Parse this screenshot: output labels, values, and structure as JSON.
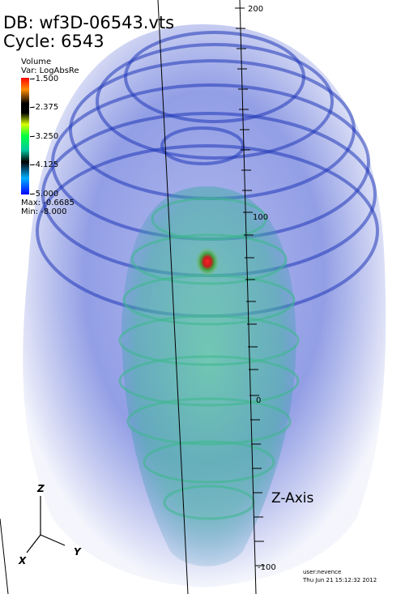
{
  "header": {
    "db_label": "DB: wf3D-06543.vts",
    "cycle_label": "Cycle: 6543"
  },
  "legend": {
    "plot_type": "Volume",
    "variable": "Var: LogAbsRe",
    "ticks": [
      "-1.500",
      "-2.375",
      "-3.250",
      "-4.125",
      "-5.000"
    ],
    "max_label": "Max: -0.6685",
    "min_label": "Min: -8.000"
  },
  "z_axis": {
    "title": "Z-Axis",
    "tick_labels": [
      "200",
      "100",
      "0",
      "-100"
    ]
  },
  "triad": {
    "x": "X",
    "y": "Y",
    "z": "Z"
  },
  "user": {
    "name": "user:nevence",
    "timestamp": "Thu Jun 21 15:12:32 2012"
  },
  "colors": {
    "volume_blue": "#2040d0",
    "volume_green": "#40c080",
    "core_red": "#d02020",
    "core_green": "#30a030"
  }
}
